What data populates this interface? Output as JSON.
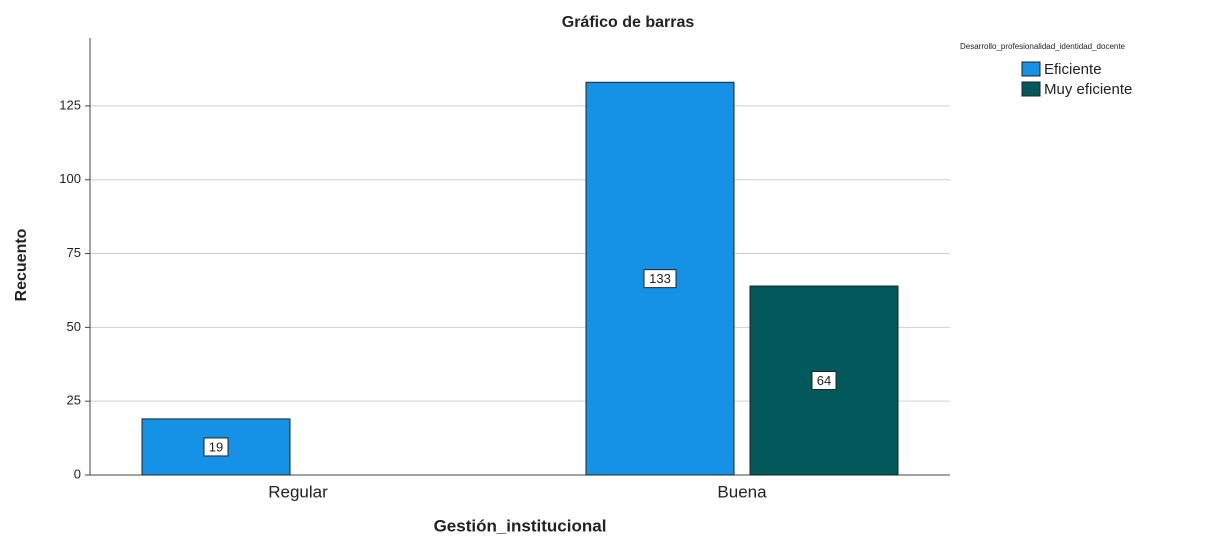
{
  "chart_data": {
    "type": "bar",
    "title": "Gráfico de barras",
    "x_label": "Gestión_institucional",
    "y_label": "Recuento",
    "legend_title": "Desarrollo_profesionalidad_identidad_docente",
    "categories": [
      "Regular",
      "Buena"
    ],
    "series": [
      {
        "name": "Eficiente",
        "color": "#1592e6",
        "values": [
          19,
          133
        ]
      },
      {
        "name": "Muy eficiente",
        "color": "#02595b",
        "values": [
          null,
          64
        ]
      }
    ],
    "ylim": [
      0,
      148
    ],
    "yticks": [
      0,
      25,
      50,
      75,
      100,
      125
    ],
    "grid": true,
    "legend_position": "top-right"
  }
}
